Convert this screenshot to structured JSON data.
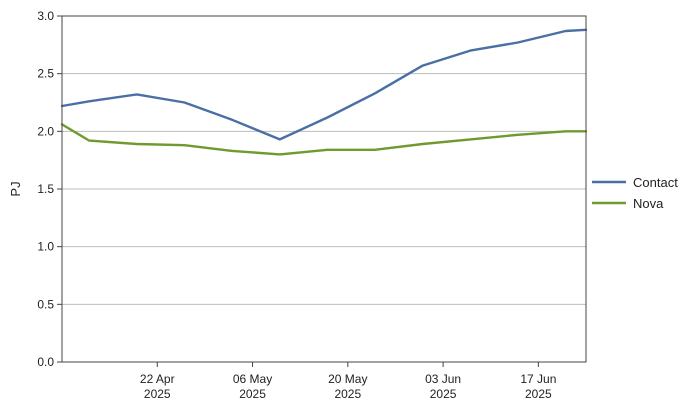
{
  "chart_data": {
    "type": "line",
    "xlabel": "",
    "ylabel": "PJ",
    "ylim": [
      0,
      3.0
    ],
    "y_ticks": [
      0.0,
      0.5,
      1.0,
      1.5,
      2.0,
      2.5,
      3.0
    ],
    "y_tick_labels": [
      "0.0",
      "0.5",
      "1.0",
      "1.5",
      "2.0",
      "2.5",
      "3.0"
    ],
    "xlim": [
      "2025-04-08",
      "2025-06-24"
    ],
    "x_ticks": [
      "2025-04-22",
      "2025-05-06",
      "2025-05-20",
      "2025-06-03",
      "2025-06-17"
    ],
    "x_tick_labels": [
      [
        "22 Apr",
        "2025"
      ],
      [
        "06 May",
        "2025"
      ],
      [
        "20 May",
        "2025"
      ],
      [
        "03 Jun",
        "2025"
      ],
      [
        "17 Jun",
        "2025"
      ]
    ],
    "grid": "horizontal",
    "legend": "right",
    "x": [
      "2025-04-08",
      "2025-04-12",
      "2025-04-19",
      "2025-04-26",
      "2025-05-03",
      "2025-05-10",
      "2025-05-17",
      "2025-05-24",
      "2025-05-31",
      "2025-06-07",
      "2025-06-14",
      "2025-06-21",
      "2025-06-24"
    ],
    "series": [
      {
        "name": "Contact",
        "color": "#4a6fa5",
        "values": [
          2.22,
          2.26,
          2.32,
          2.25,
          2.1,
          1.93,
          2.12,
          2.33,
          2.57,
          2.7,
          2.77,
          2.87,
          2.88
        ]
      },
      {
        "name": "Nova",
        "color": "#6f9a2e",
        "values": [
          2.06,
          1.92,
          1.89,
          1.88,
          1.83,
          1.8,
          1.84,
          1.84,
          1.89,
          1.93,
          1.97,
          2.0,
          2.0
        ]
      }
    ]
  }
}
